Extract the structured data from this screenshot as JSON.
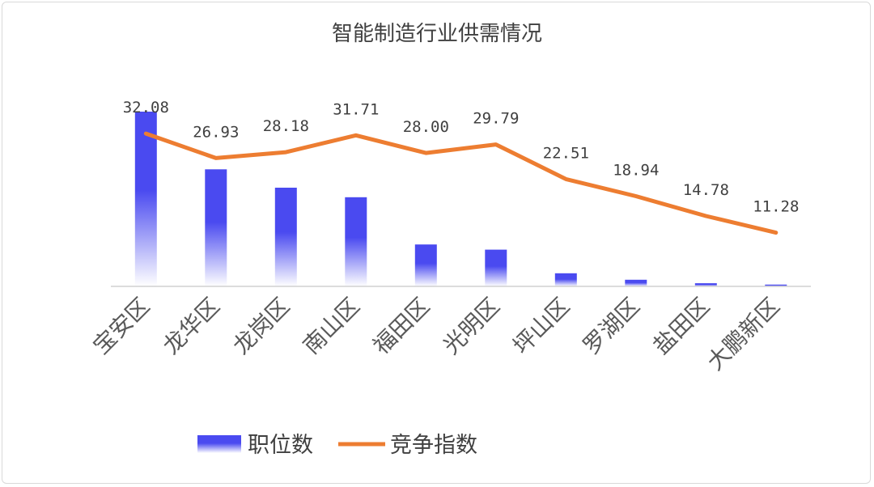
{
  "chart_data": {
    "type": "bar",
    "title": "智能制造行业供需情况",
    "categories": [
      "宝安区",
      "龙华区",
      "龙岗区",
      "南山区",
      "福田区",
      "光明区",
      "坪山区",
      "罗湖区",
      "盐田区",
      "大鹏新区"
    ],
    "series": [
      {
        "name": "职位数",
        "type": "bar",
        "axis": "left",
        "color": "#4a4af0",
        "values": [
          1000,
          670,
          565,
          510,
          240,
          210,
          75,
          38,
          18,
          10
        ]
      },
      {
        "name": "竞争指数",
        "type": "line",
        "axis": "right",
        "color": "#ed7d31",
        "values": [
          32.08,
          26.93,
          28.18,
          31.71,
          28.0,
          29.79,
          22.51,
          18.94,
          14.78,
          11.28
        ],
        "labels": [
          "32.08",
          "26.93",
          "28.18",
          "31.71",
          "28.00",
          "29.79",
          "22.51",
          "18.94",
          "14.78",
          "11.28"
        ]
      }
    ],
    "ylim_left": [
      0,
      1000
    ],
    "ylim_right": [
      0,
      45
    ],
    "grid": false,
    "legend_position": "bottom"
  }
}
